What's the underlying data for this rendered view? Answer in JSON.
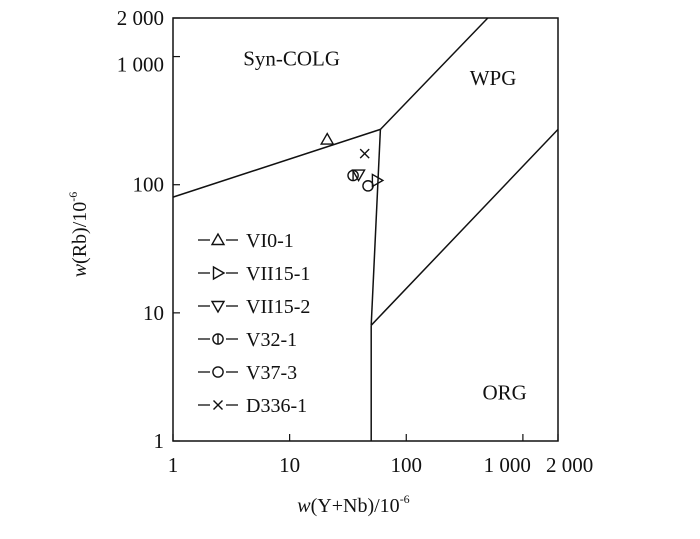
{
  "chart_data": {
    "type": "scatter",
    "title": "",
    "x_scale": "log",
    "y_scale": "log",
    "xlim": [
      1,
      2000
    ],
    "ylim": [
      1,
      2000
    ],
    "x_ticks": [
      {
        "value": 1,
        "label": "1"
      },
      {
        "value": 10,
        "label": "10"
      },
      {
        "value": 100,
        "label": "100"
      },
      {
        "value": 1000,
        "label": "1 000"
      },
      {
        "value": 2000,
        "label": "2 000"
      }
    ],
    "y_ticks": [
      {
        "value": 1,
        "label": "1"
      },
      {
        "value": 10,
        "label": "10"
      },
      {
        "value": 100,
        "label": "100"
      },
      {
        "value": 1000,
        "label": "1 000"
      },
      {
        "value": 2000,
        "label": "2 000"
      }
    ],
    "xlabel": {
      "italic": "w",
      "main": "(Y+Nb)/10",
      "sup": "-6"
    },
    "ylabel": {
      "italic": "w",
      "main": "(Rb)/10",
      "sup": "-6"
    },
    "grid": false,
    "legend_position": "left",
    "regions": [
      {
        "label": "Syn-COLG",
        "x": 4,
        "y": 850
      },
      {
        "label": "WPG",
        "x": 350,
        "y": 600
      },
      {
        "label": "ORG",
        "x": 450,
        "y": 2.1
      }
    ],
    "boundaries": [
      [
        [
          1,
          80
        ],
        [
          60,
          270
        ]
      ],
      [
        [
          60,
          270
        ],
        [
          500,
          2000
        ]
      ],
      [
        [
          60,
          270
        ],
        [
          50,
          8
        ]
      ],
      [
        [
          50,
          8
        ],
        [
          50,
          1
        ]
      ],
      [
        [
          50,
          8
        ],
        [
          2000,
          270
        ]
      ]
    ],
    "series": [
      {
        "name": "VI0-1",
        "marker": "triangle-up",
        "points": [
          [
            21,
            225
          ]
        ]
      },
      {
        "name": "VII15-1",
        "marker": "triangle-right",
        "points": [
          [
            56,
            108
          ]
        ]
      },
      {
        "name": "VII15-2",
        "marker": "triangle-down",
        "points": [
          [
            39,
            120
          ]
        ]
      },
      {
        "name": "V32-1",
        "marker": "circle-vline",
        "points": [
          [
            35,
            118
          ]
        ]
      },
      {
        "name": "V37-3",
        "marker": "circle",
        "points": [
          [
            47,
            98
          ]
        ]
      },
      {
        "name": "D336-1",
        "marker": "x",
        "points": [
          [
            44,
            175
          ]
        ]
      }
    ]
  }
}
